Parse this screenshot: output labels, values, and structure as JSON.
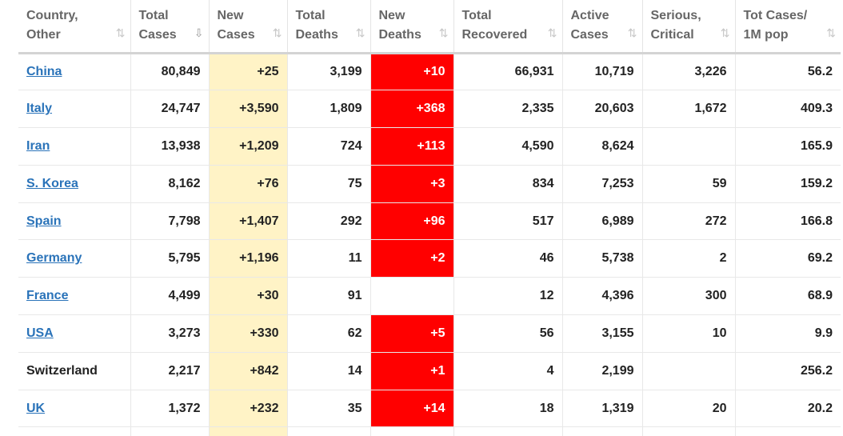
{
  "table": {
    "columns": [
      {
        "line1": "Country,",
        "line2": "Other"
      },
      {
        "line1": "Total",
        "line2": "Cases"
      },
      {
        "line1": "New",
        "line2": "Cases"
      },
      {
        "line1": "Total",
        "line2": "Deaths"
      },
      {
        "line1": "New",
        "line2": "Deaths"
      },
      {
        "line1": "Total",
        "line2": "Recovered"
      },
      {
        "line1": "Active",
        "line2": "Cases"
      },
      {
        "line1": "Serious,",
        "line2": "Critical"
      },
      {
        "line1": "Tot Cases/",
        "line2": "1M pop"
      }
    ],
    "sort_icons": {
      "default": "⇅",
      "active": "⇩"
    },
    "rows": [
      {
        "country": "China",
        "linked": true,
        "total_cases": "80,849",
        "new_cases": "+25",
        "total_deaths": "3,199",
        "new_deaths": "+10",
        "total_recovered": "66,931",
        "active_cases": "10,719",
        "serious_critical": "3,226",
        "per_million": "56.2"
      },
      {
        "country": "Italy",
        "linked": true,
        "total_cases": "24,747",
        "new_cases": "+3,590",
        "total_deaths": "1,809",
        "new_deaths": "+368",
        "total_recovered": "2,335",
        "active_cases": "20,603",
        "serious_critical": "1,672",
        "per_million": "409.3"
      },
      {
        "country": "Iran",
        "linked": true,
        "total_cases": "13,938",
        "new_cases": "+1,209",
        "total_deaths": "724",
        "new_deaths": "+113",
        "total_recovered": "4,590",
        "active_cases": "8,624",
        "serious_critical": "",
        "per_million": "165.9"
      },
      {
        "country": "S. Korea",
        "linked": true,
        "total_cases": "8,162",
        "new_cases": "+76",
        "total_deaths": "75",
        "new_deaths": "+3",
        "total_recovered": "834",
        "active_cases": "7,253",
        "serious_critical": "59",
        "per_million": "159.2"
      },
      {
        "country": "Spain",
        "linked": true,
        "total_cases": "7,798",
        "new_cases": "+1,407",
        "total_deaths": "292",
        "new_deaths": "+96",
        "total_recovered": "517",
        "active_cases": "6,989",
        "serious_critical": "272",
        "per_million": "166.8"
      },
      {
        "country": "Germany",
        "linked": true,
        "total_cases": "5,795",
        "new_cases": "+1,196",
        "total_deaths": "11",
        "new_deaths": "+2",
        "total_recovered": "46",
        "active_cases": "5,738",
        "serious_critical": "2",
        "per_million": "69.2"
      },
      {
        "country": "France",
        "linked": true,
        "total_cases": "4,499",
        "new_cases": "+30",
        "total_deaths": "91",
        "new_deaths": "",
        "total_recovered": "12",
        "active_cases": "4,396",
        "serious_critical": "300",
        "per_million": "68.9"
      },
      {
        "country": "USA",
        "linked": true,
        "total_cases": "3,273",
        "new_cases": "+330",
        "total_deaths": "62",
        "new_deaths": "+5",
        "total_recovered": "56",
        "active_cases": "3,155",
        "serious_critical": "10",
        "per_million": "9.9"
      },
      {
        "country": "Switzerland",
        "linked": false,
        "total_cases": "2,217",
        "new_cases": "+842",
        "total_deaths": "14",
        "new_deaths": "+1",
        "total_recovered": "4",
        "active_cases": "2,199",
        "serious_critical": "",
        "per_million": "256.2"
      },
      {
        "country": "UK",
        "linked": true,
        "total_cases": "1,372",
        "new_cases": "+232",
        "total_deaths": "35",
        "new_deaths": "+14",
        "total_recovered": "18",
        "active_cases": "1,319",
        "serious_critical": "20",
        "per_million": "20.2"
      }
    ]
  },
  "colors": {
    "link": "#2a73b9",
    "new_cases_bg": "#fff3c6",
    "new_deaths_bg": "#ff0000",
    "header_text": "#666666"
  }
}
